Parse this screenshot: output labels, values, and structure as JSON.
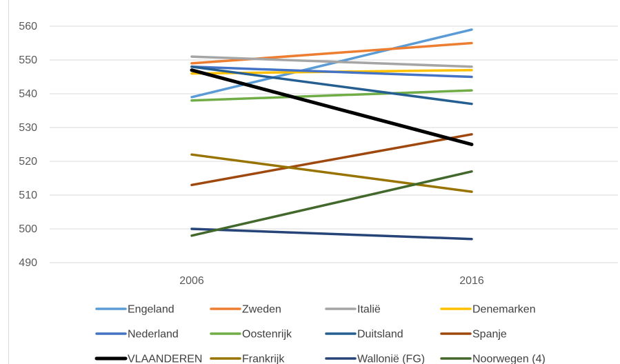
{
  "chart_data": {
    "type": "line",
    "title": "",
    "xlabel": "",
    "ylabel": "",
    "categories": [
      "2006",
      "2016"
    ],
    "ylim": [
      490,
      560
    ],
    "yticks": [
      490,
      500,
      510,
      520,
      530,
      540,
      550,
      560
    ],
    "grid": true,
    "legend_position": "bottom",
    "series": [
      {
        "name": "Engeland",
        "values": [
          539,
          559
        ],
        "color": "#5B9BD5"
      },
      {
        "name": "Zweden",
        "values": [
          549,
          555
        ],
        "color": "#ED7D31"
      },
      {
        "name": "Italië",
        "values": [
          551,
          548
        ],
        "color": "#A5A5A5"
      },
      {
        "name": "Denemarken",
        "values": [
          546,
          547
        ],
        "color": "#FFC000"
      },
      {
        "name": "Nederland",
        "values": [
          548,
          545
        ],
        "color": "#4472C4"
      },
      {
        "name": "Oostenrijk",
        "values": [
          538,
          541
        ],
        "color": "#70AD47"
      },
      {
        "name": "Duitsland",
        "values": [
          548,
          537
        ],
        "color": "#255E91"
      },
      {
        "name": "Spanje",
        "values": [
          513,
          528
        ],
        "color": "#9E480E"
      },
      {
        "name": "VLAANDEREN",
        "values": [
          547,
          525
        ],
        "color": "#000000"
      },
      {
        "name": "Frankrijk",
        "values": [
          522,
          511
        ],
        "color": "#997300"
      },
      {
        "name": "Wallonië (FG)",
        "values": [
          500,
          497
        ],
        "color": "#264478"
      },
      {
        "name": "Noorwegen (4)",
        "values": [
          498,
          517
        ],
        "color": "#43682B"
      }
    ]
  }
}
